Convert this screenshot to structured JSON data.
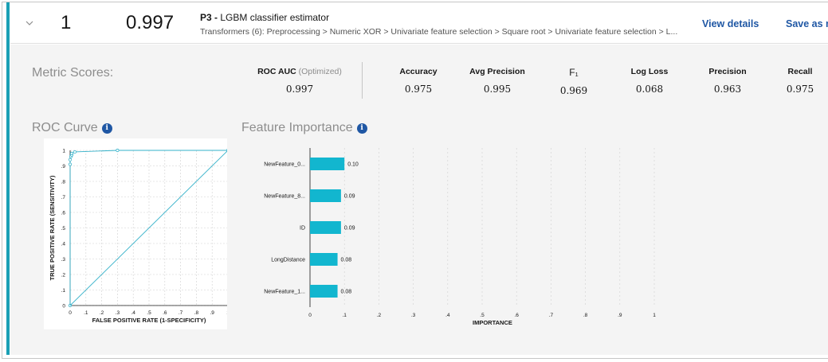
{
  "pipeline": {
    "rank": "1",
    "score": "0.997",
    "id": "P3",
    "separator": " - ",
    "name": "LGBM classifier estimator",
    "transformers": "Transformers (6): Preprocessing > Numeric XOR > Univariate feature selection > Square root > Univariate feature selection > L...",
    "view_details": "View details",
    "save_as": "Save as mo"
  },
  "metrics": {
    "title": "Metric Scores:",
    "items": [
      {
        "label": "ROC AUC",
        "suffix": "(Optimized)",
        "value": "0.997"
      },
      {
        "label": "Accuracy",
        "value": "0.975"
      },
      {
        "label": "Avg Precision",
        "value": "0.995"
      },
      {
        "label": "F₁",
        "value": "0.969"
      },
      {
        "label": "Log Loss",
        "value": "0.068"
      },
      {
        "label": "Precision",
        "value": "0.963"
      },
      {
        "label": "Recall",
        "value": "0.975"
      }
    ]
  },
  "roc": {
    "title": "ROC Curve",
    "info_icon": "info-icon"
  },
  "feature_importance": {
    "title": "Feature Importance",
    "info_icon": "info-icon"
  },
  "chart_data": [
    {
      "type": "line",
      "title": "ROC Curve",
      "xlabel": "FALSE POSITIVE RATE (1-SPECIFICITY)",
      "ylabel": "TRUE POSITIVE RATE (SENSITIVITY)",
      "xlim": [
        0,
        1
      ],
      "ylim": [
        0,
        1
      ],
      "x_ticks": [
        "0",
        ".1",
        ".2",
        ".3",
        ".4",
        ".5",
        ".6",
        ".7",
        ".8",
        ".9",
        "1"
      ],
      "y_ticks": [
        "0",
        ".1",
        ".2",
        ".3",
        ".4",
        ".5",
        ".6",
        ".7",
        ".8",
        ".9",
        "1"
      ],
      "grid": true,
      "series": [
        {
          "name": "ROC",
          "x": [
            0,
            0,
            0,
            0.005,
            0.01,
            0.01,
            0.03,
            0.3,
            1.0
          ],
          "y": [
            0,
            0.91,
            0.94,
            0.96,
            0.97,
            0.98,
            0.99,
            1.0,
            1.0
          ]
        },
        {
          "name": "Baseline",
          "x": [
            0,
            1
          ],
          "y": [
            0,
            1
          ]
        }
      ],
      "colors": {
        "line": "#33b1c9"
      }
    },
    {
      "type": "bar",
      "orientation": "horizontal",
      "title": "Feature Importance",
      "xlabel": "IMPORTANCE",
      "xlim": [
        0,
        1
      ],
      "x_ticks": [
        "0",
        ".1",
        ".2",
        ".3",
        ".4",
        ".5",
        ".6",
        ".7",
        ".8",
        ".9",
        "1"
      ],
      "categories": [
        "NewFeature_0...",
        "NewFeature_8...",
        "ID",
        "LongDistance",
        "NewFeature_1..."
      ],
      "values": [
        0.1,
        0.09,
        0.09,
        0.08,
        0.08
      ],
      "value_labels": [
        "0.10",
        "0.09",
        "0.09",
        "0.08",
        "0.08"
      ],
      "colors": {
        "bar": "#12b6cf"
      }
    }
  ]
}
